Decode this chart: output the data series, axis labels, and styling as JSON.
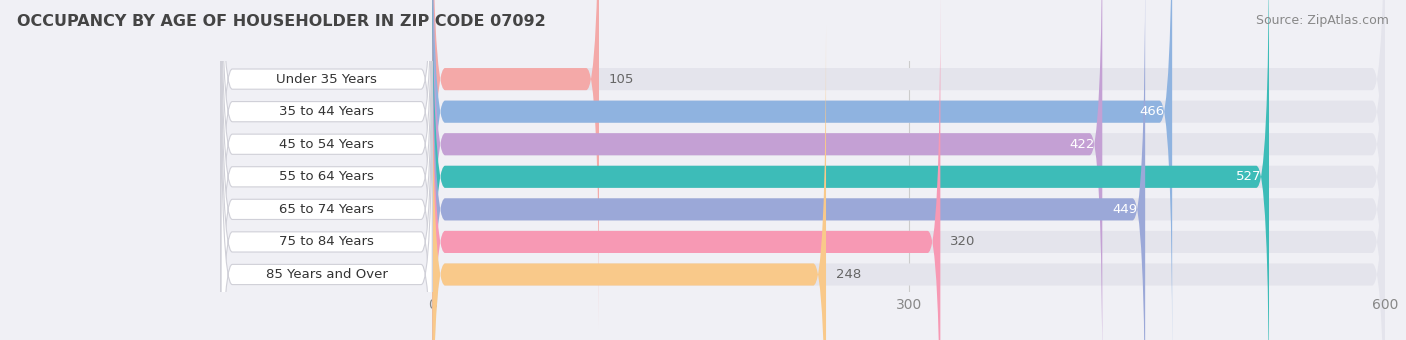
{
  "title": "OCCUPANCY BY AGE OF HOUSEHOLDER IN ZIP CODE 07092",
  "source": "Source: ZipAtlas.com",
  "categories": [
    "Under 35 Years",
    "35 to 44 Years",
    "45 to 54 Years",
    "55 to 64 Years",
    "65 to 74 Years",
    "75 to 84 Years",
    "85 Years and Over"
  ],
  "values": [
    105,
    466,
    422,
    527,
    449,
    320,
    248
  ],
  "bar_colors": [
    "#f4a9a8",
    "#8fb3e0",
    "#c4a0d4",
    "#3dbcb8",
    "#9ba8d8",
    "#f799b4",
    "#f9c98a"
  ],
  "label_colors": [
    "#555555",
    "#ffffff",
    "#ffffff",
    "#ffffff",
    "#ffffff",
    "#555555",
    "#555555"
  ],
  "xlim": [
    0,
    600
  ],
  "xticks": [
    0,
    300,
    600
  ],
  "background_color": "#f0f0f5",
  "bar_background": "#e4e4ec",
  "title_fontsize": 11.5,
  "source_fontsize": 9,
  "label_fontsize": 9.5,
  "value_fontsize": 9.5,
  "tick_fontsize": 10,
  "bar_height": 0.68,
  "bar_gap": 1.0
}
